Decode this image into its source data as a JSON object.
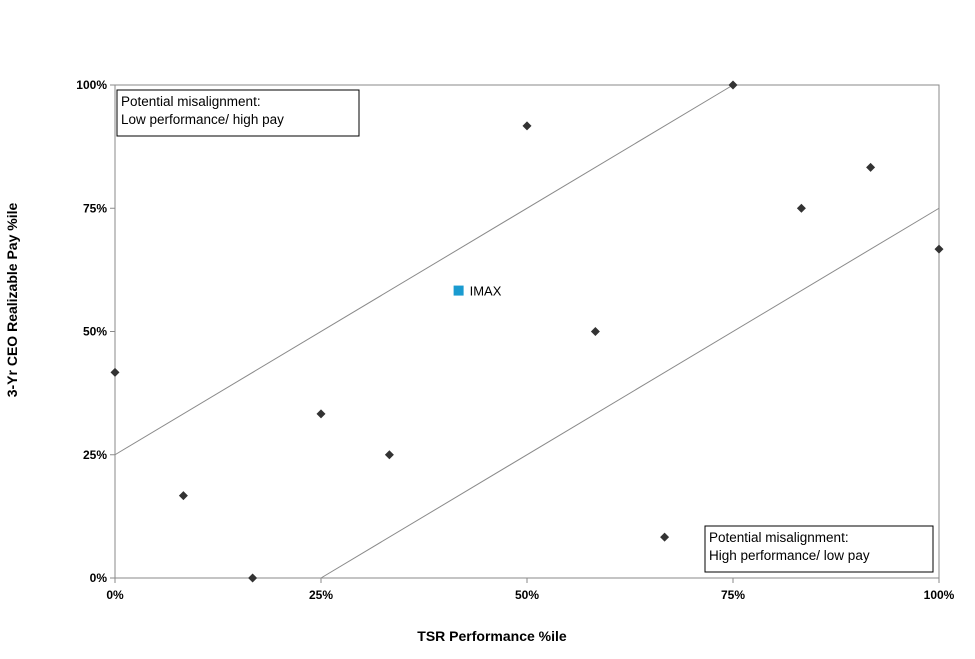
{
  "chart_data": {
    "type": "scatter",
    "title": "",
    "xlabel": "TSR Performance %ile",
    "ylabel": "3-Yr CEO Realizable Pay  %ile",
    "xlim": [
      0,
      100
    ],
    "ylim": [
      0,
      100
    ],
    "x_ticks": [
      "0%",
      "25%",
      "50%",
      "75%",
      "100%"
    ],
    "y_ticks": [
      "0%",
      "25%",
      "50%",
      "75%",
      "100%"
    ],
    "grid": false,
    "legend": "none",
    "series": [
      {
        "marker": "diamond",
        "color": "#333333",
        "points": [
          {
            "x": 0,
            "y": 41.7
          },
          {
            "x": 8.3,
            "y": 16.7
          },
          {
            "x": 16.7,
            "y": 0
          },
          {
            "x": 25,
            "y": 33.3
          },
          {
            "x": 33.3,
            "y": 25
          },
          {
            "x": 50,
            "y": 91.7
          },
          {
            "x": 58.3,
            "y": 50
          },
          {
            "x": 66.7,
            "y": 8.3
          },
          {
            "x": 75,
            "y": 100
          },
          {
            "x": 83.3,
            "y": 75
          },
          {
            "x": 91.7,
            "y": 83.3
          },
          {
            "x": 100,
            "y": 66.7
          }
        ]
      },
      {
        "marker": "square",
        "color": "#1a9bd0",
        "points": [
          {
            "x": 41.7,
            "y": 58.3,
            "label": "IMAX"
          }
        ]
      }
    ],
    "reference_lines": [
      {
        "from": [
          0,
          25
        ],
        "to": [
          75,
          100
        ]
      },
      {
        "from": [
          25,
          0
        ],
        "to": [
          100,
          75
        ]
      }
    ],
    "annotations": [
      {
        "position": "top-left",
        "lines": [
          "Potential misalignment:",
          "Low performance/ high pay"
        ]
      },
      {
        "position": "bottom-right",
        "lines": [
          "Potential misalignment:",
          "High performance/ low pay"
        ]
      }
    ]
  }
}
